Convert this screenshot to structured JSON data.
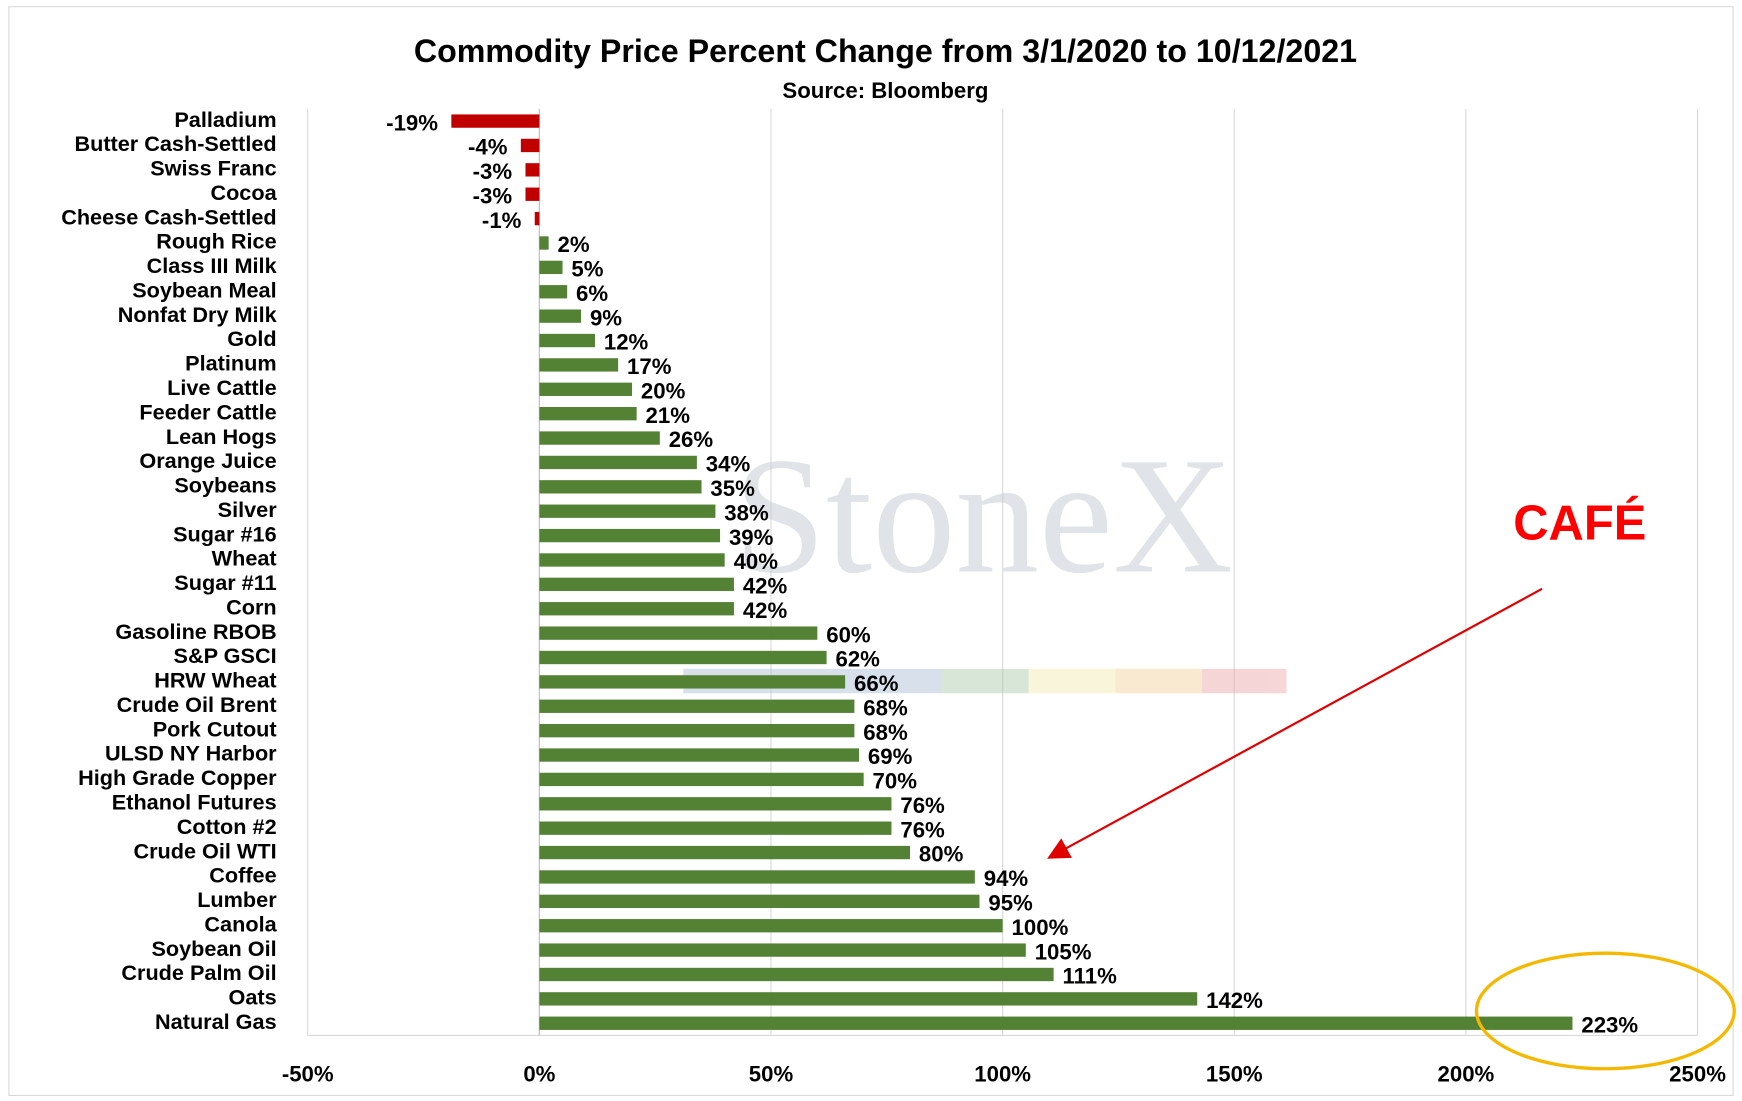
{
  "chart_data": {
    "type": "bar",
    "orientation": "horizontal",
    "title": "Commodity Price Percent Change from 3/1/2020 to 10/12/2021",
    "subtitle": "Source: Bloomberg",
    "watermark": "StoneX",
    "annotation": "CAFÉ",
    "categories": [
      "Palladium",
      "Butter Cash-Settled",
      "Swiss Franc",
      "Cocoa",
      "Cheese Cash-Settled",
      "Rough Rice",
      "Class III Milk",
      "Soybean Meal",
      "Nonfat Dry Milk",
      "Gold",
      "Platinum",
      "Live Cattle",
      "Feeder Cattle",
      "Lean Hogs",
      "Orange Juice",
      "Soybeans",
      "Silver",
      "Sugar #16",
      "Wheat",
      "Sugar #11",
      "Corn",
      "Gasoline RBOB",
      "S&P GSCI",
      "HRW Wheat",
      "Crude Oil Brent",
      "Pork Cutout",
      "ULSD NY Harbor",
      "High Grade Copper",
      "Ethanol Futures",
      "Cotton #2",
      "Crude Oil WTI",
      "Coffee",
      "Lumber",
      "Canola",
      "Soybean Oil",
      "Crude Palm Oil",
      "Oats",
      "Natural Gas"
    ],
    "values": [
      -19,
      -4,
      -3,
      -3,
      -1,
      2,
      5,
      6,
      9,
      12,
      17,
      20,
      21,
      26,
      34,
      35,
      38,
      39,
      40,
      42,
      42,
      60,
      62,
      66,
      68,
      68,
      69,
      70,
      76,
      76,
      80,
      94,
      95,
      100,
      105,
      111,
      142,
      223
    ],
    "value_labels": [
      "-19%",
      "-4%",
      "-3%",
      "-3%",
      "-1%",
      "2%",
      "5%",
      "6%",
      "9%",
      "12%",
      "17%",
      "20%",
      "21%",
      "26%",
      "34%",
      "35%",
      "38%",
      "39%",
      "40%",
      "42%",
      "42%",
      "60%",
      "62%",
      "66%",
      "68%",
      "68%",
      "69%",
      "70%",
      "76%",
      "76%",
      "80%",
      "94%",
      "95%",
      "100%",
      "105%",
      "111%",
      "142%",
      "223%"
    ],
    "color": "#548235",
    "negative_color": "#c00000",
    "xlim": [
      -50,
      250
    ],
    "xticks": [
      {
        "value": -50,
        "label": "-50%"
      },
      {
        "value": 0,
        "label": "0%"
      },
      {
        "value": 50,
        "label": "50%"
      },
      {
        "value": 100,
        "label": "100%"
      },
      {
        "value": 150,
        "label": "150%"
      },
      {
        "value": 200,
        "label": "200%"
      },
      {
        "value": 250,
        "label": "250%"
      }
    ],
    "grid": true
  }
}
